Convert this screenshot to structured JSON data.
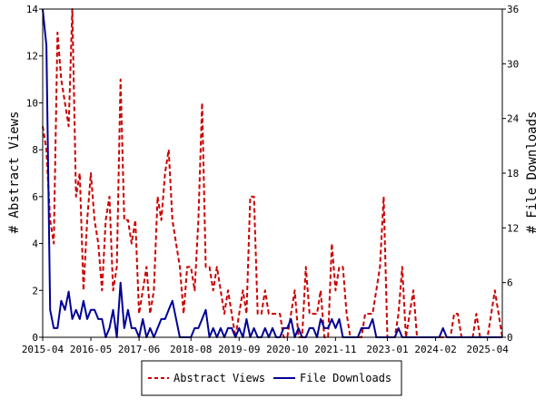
{
  "chart_data": {
    "type": "line",
    "y_left_label": "# Abstract Views",
    "y_right_label": "# File Downloads",
    "y_left_range": [
      0,
      14
    ],
    "y_right_range": [
      0,
      36
    ],
    "y_left_ticks": [
      0,
      2,
      4,
      6,
      8,
      10,
      12,
      14
    ],
    "y_right_ticks": [
      0,
      6,
      12,
      18,
      24,
      30,
      36
    ],
    "x_range": [
      "2015-04",
      "2025-08"
    ],
    "x_ticks": [
      "2015-04",
      "2016-05",
      "2017-06",
      "2018-08",
      "2019-09",
      "2020-10",
      "2021-11",
      "2023-01",
      "2024-02",
      "2025-04"
    ],
    "grid": false,
    "legend_position": "bottom",
    "colors": {
      "abstract_views": "#cc0000",
      "file_downloads": "#000099"
    },
    "series": [
      {
        "name": "Abstract Views",
        "axis": "left",
        "style": "dashed",
        "color": "#cc0000",
        "x": [
          "2015-04",
          "2015-05",
          "2015-06",
          "2015-07",
          "2015-08",
          "2015-09",
          "2015-10",
          "2015-11",
          "2015-12",
          "2016-01",
          "2016-02",
          "2016-03",
          "2016-04",
          "2016-05",
          "2016-06",
          "2016-07",
          "2016-08",
          "2016-09",
          "2016-10",
          "2016-11",
          "2016-12",
          "2017-01",
          "2017-02",
          "2017-03",
          "2017-04",
          "2017-05",
          "2017-06",
          "2017-07",
          "2017-08",
          "2017-09",
          "2017-10",
          "2017-11",
          "2017-12",
          "2018-01",
          "2018-02",
          "2018-03",
          "2018-04",
          "2018-05",
          "2018-06",
          "2018-07",
          "2018-08",
          "2018-09",
          "2018-10",
          "2018-11",
          "2018-12",
          "2019-01",
          "2019-02",
          "2019-03",
          "2019-04",
          "2019-05",
          "2019-06",
          "2019-07",
          "2019-08",
          "2019-09",
          "2019-10",
          "2019-11",
          "2019-12",
          "2020-01",
          "2020-02",
          "2020-03",
          "2020-04",
          "2020-05",
          "2020-06",
          "2020-07",
          "2020-08",
          "2020-09",
          "2020-10",
          "2020-11",
          "2020-12",
          "2021-01",
          "2021-02",
          "2021-03",
          "2021-04",
          "2021-05",
          "2021-06",
          "2021-07",
          "2021-08",
          "2021-09",
          "2021-10",
          "2021-11",
          "2021-12",
          "2022-01",
          "2022-02",
          "2022-03",
          "2022-04",
          "2022-05",
          "2022-06",
          "2022-07",
          "2022-08",
          "2022-09",
          "2022-10",
          "2022-11",
          "2022-12",
          "2023-01",
          "2023-02",
          "2023-03",
          "2023-04",
          "2023-05",
          "2023-06",
          "2023-07",
          "2023-08",
          "2023-09",
          "2023-10",
          "2023-11",
          "2023-12",
          "2024-01",
          "2024-02",
          "2024-03",
          "2024-04",
          "2024-05",
          "2024-06",
          "2024-07",
          "2024-08",
          "2024-09",
          "2024-10",
          "2024-11",
          "2024-12",
          "2025-01",
          "2025-02",
          "2025-03",
          "2025-04",
          "2025-05",
          "2025-06",
          "2025-07",
          "2025-08"
        ],
        "values": [
          9,
          8,
          5,
          4,
          13,
          11,
          10,
          9,
          14,
          6,
          7,
          2,
          5,
          7,
          5,
          4,
          2,
          5,
          6,
          2,
          3,
          11,
          5,
          5,
          4,
          5,
          1,
          2,
          3,
          1,
          2,
          6,
          5,
          7,
          8,
          5,
          4,
          3,
          1,
          3,
          3,
          2,
          5,
          10,
          3,
          3,
          2,
          3,
          2,
          1,
          2,
          1,
          0,
          1,
          2,
          1,
          6,
          6,
          1,
          1,
          2,
          1,
          1,
          1,
          1,
          0,
          0,
          1,
          2,
          0,
          0,
          3,
          1,
          1,
          1,
          2,
          0,
          0,
          4,
          2,
          3,
          3,
          1,
          0,
          0,
          0,
          0,
          1,
          1,
          1,
          2,
          3,
          6,
          0,
          0,
          0,
          1,
          3,
          0,
          1,
          2,
          0,
          0,
          0,
          0,
          0,
          0,
          0,
          0,
          0,
          0,
          1,
          1,
          0,
          0,
          0,
          0,
          1,
          0,
          0,
          0,
          1,
          2,
          1,
          0
        ]
      },
      {
        "name": "File Downloads",
        "axis": "right",
        "style": "solid",
        "color": "#000099",
        "x": [
          "2015-04",
          "2015-05",
          "2015-06",
          "2015-07",
          "2015-08",
          "2015-09",
          "2015-10",
          "2015-11",
          "2015-12",
          "2016-01",
          "2016-02",
          "2016-03",
          "2016-04",
          "2016-05",
          "2016-06",
          "2016-07",
          "2016-08",
          "2016-09",
          "2016-10",
          "2016-11",
          "2016-12",
          "2017-01",
          "2017-02",
          "2017-03",
          "2017-04",
          "2017-05",
          "2017-06",
          "2017-07",
          "2017-08",
          "2017-09",
          "2017-10",
          "2017-11",
          "2017-12",
          "2018-01",
          "2018-02",
          "2018-03",
          "2018-04",
          "2018-05",
          "2018-06",
          "2018-07",
          "2018-08",
          "2018-09",
          "2018-10",
          "2018-11",
          "2018-12",
          "2019-01",
          "2019-02",
          "2019-03",
          "2019-04",
          "2019-05",
          "2019-06",
          "2019-07",
          "2019-08",
          "2019-09",
          "2019-10",
          "2019-11",
          "2019-12",
          "2020-01",
          "2020-02",
          "2020-03",
          "2020-04",
          "2020-05",
          "2020-06",
          "2020-07",
          "2020-08",
          "2020-09",
          "2020-10",
          "2020-11",
          "2020-12",
          "2021-01",
          "2021-02",
          "2021-03",
          "2021-04",
          "2021-05",
          "2021-06",
          "2021-07",
          "2021-08",
          "2021-09",
          "2021-10",
          "2021-11",
          "2021-12",
          "2022-01",
          "2022-02",
          "2022-03",
          "2022-04",
          "2022-05",
          "2022-06",
          "2022-07",
          "2022-08",
          "2022-09",
          "2022-10",
          "2022-11",
          "2022-12",
          "2023-01",
          "2023-02",
          "2023-03",
          "2023-04",
          "2023-05",
          "2023-06",
          "2023-07",
          "2023-08",
          "2023-09",
          "2023-10",
          "2023-11",
          "2023-12",
          "2024-01",
          "2024-02",
          "2024-03",
          "2024-04",
          "2024-05",
          "2024-06",
          "2024-07",
          "2024-08",
          "2024-09",
          "2024-10",
          "2024-11",
          "2024-12",
          "2025-01",
          "2025-02",
          "2025-03",
          "2025-04",
          "2025-05",
          "2025-06",
          "2025-07",
          "2025-08"
        ],
        "values": [
          36,
          32,
          3,
          1,
          1,
          4,
          3,
          5,
          2,
          3,
          2,
          4,
          2,
          3,
          3,
          2,
          2,
          0,
          1,
          3,
          0,
          6,
          1,
          3,
          1,
          1,
          0,
          2,
          0,
          1,
          0,
          1,
          2,
          2,
          3,
          4,
          2,
          0,
          0,
          0,
          0,
          1,
          1,
          2,
          3,
          0,
          1,
          0,
          1,
          0,
          1,
          1,
          0,
          1,
          0,
          2,
          0,
          1,
          0,
          0,
          1,
          0,
          1,
          0,
          0,
          1,
          1,
          2,
          0,
          1,
          0,
          0,
          1,
          1,
          0,
          2,
          1,
          1,
          2,
          1,
          2,
          0,
          0,
          0,
          0,
          0,
          1,
          1,
          1,
          2,
          0,
          0,
          0,
          0,
          0,
          0,
          1,
          0,
          0,
          0,
          0,
          0,
          0,
          0,
          0,
          0,
          0,
          0,
          1,
          0,
          0,
          0,
          0,
          0,
          0,
          0,
          0,
          0,
          0,
          0,
          0,
          0,
          0,
          0,
          0
        ]
      }
    ]
  }
}
